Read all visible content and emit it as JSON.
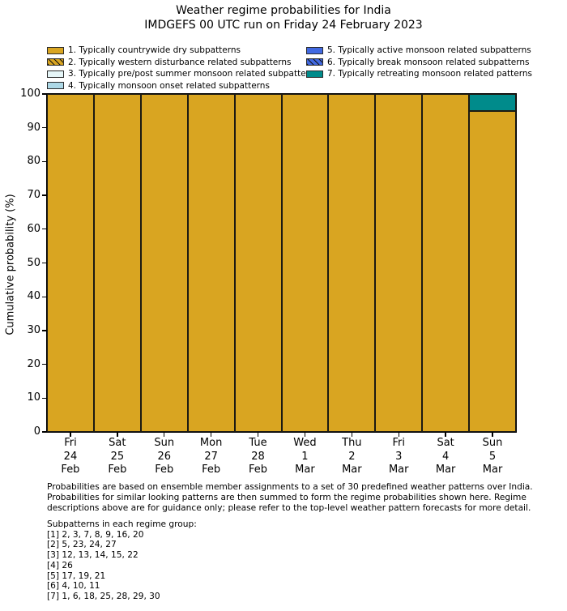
{
  "title": {
    "line1": "Weather regime probabilities for India",
    "line2": "IMDGEFS 00 UTC run on Friday 24 February 2023"
  },
  "legend": {
    "items": [
      {
        "label": "1. Typically countrywide dry subpatterns",
        "color": "#d9a521",
        "hatch": false
      },
      {
        "label": "2. Typically western disturbance related subpatterns",
        "color": "#d9a521",
        "hatch": true
      },
      {
        "label": "3. Typically pre/post summer monsoon related subpatterns",
        "color": "#e6f6f8",
        "hatch": false
      },
      {
        "label": "4. Typically monsoon onset related subpatterns",
        "color": "#add8e6",
        "hatch": false
      },
      {
        "label": "5. Typically active monsoon related subpatterns",
        "color": "#4169e1",
        "hatch": false
      },
      {
        "label": "6. Typically break monsoon related subpatterns",
        "color": "#4169e1",
        "hatch": true
      },
      {
        "label": "7. Typically retreating monsoon related patterns",
        "color": "#008b8b",
        "hatch": false
      }
    ]
  },
  "chart_data": {
    "type": "bar",
    "stacked": true,
    "title": "Weather regime probabilities for India",
    "ylabel": "Cumulative probability (%)",
    "ylim": [
      0,
      100
    ],
    "yticks": [
      0,
      10,
      20,
      30,
      40,
      50,
      60,
      70,
      80,
      90,
      100
    ],
    "grid": false,
    "legend_position": "top",
    "bar_edge_color": "#1c1a12",
    "categories": [
      "Fri\n24\nFeb",
      "Sat\n25\nFeb",
      "Sun\n26\nFeb",
      "Mon\n27\nFeb",
      "Tue\n28\nFeb",
      "Wed\n1\nMar",
      "Thu\n2\nMar",
      "Fri\n3\nMar",
      "Sat\n4\nMar",
      "Sun\n5\nMar"
    ],
    "series": [
      {
        "name": "1. Typically countrywide dry subpatterns",
        "color": "#d9a521",
        "values": [
          100,
          100,
          100,
          100,
          100,
          100,
          100,
          100,
          100,
          95
        ]
      },
      {
        "name": "7. Typically retreating monsoon related patterns",
        "color": "#008b8b",
        "values": [
          0,
          0,
          0,
          0,
          0,
          0,
          0,
          0,
          0,
          5
        ]
      }
    ]
  },
  "footnote": "Probabilities are based on ensemble member assignments to a set of 30 predefined weather patterns over India.\nProbabilities for similar looking patterns are then summed to form the regime probabilities shown here. Regime\ndescriptions above are for guidance only; please refer to the top-level weather pattern forecasts for more detail.",
  "subpatterns": {
    "heading": "Subpatterns in each regime group:",
    "groups": [
      "[1] 2, 3, 7, 8, 9, 16, 20",
      "[2] 5, 23, 24, 27",
      "[3] 12, 13, 14, 15, 22",
      "[4] 26",
      "[5] 17, 19, 21",
      "[6] 4, 10, 11",
      "[7] 1, 6, 18, 25, 28, 29, 30"
    ]
  }
}
